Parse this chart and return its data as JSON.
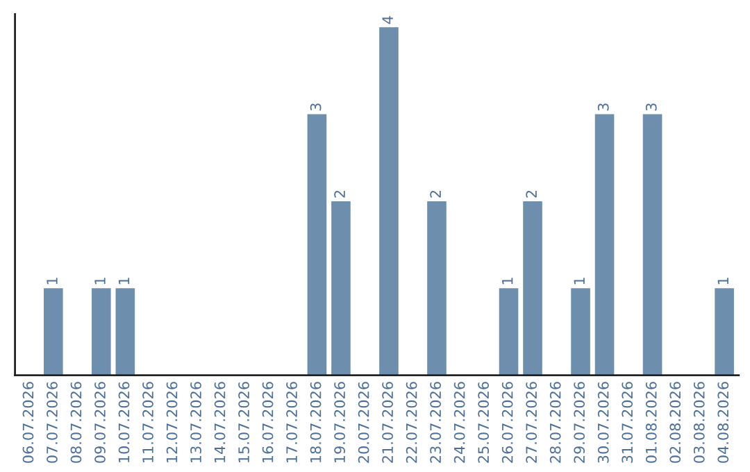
{
  "chart_data": {
    "type": "bar",
    "categories": [
      "06.07.2026",
      "07.07.2026",
      "08.07.2026",
      "09.07.2026",
      "10.07.2026",
      "11.07.2026",
      "12.07.2026",
      "13.07.2026",
      "14.07.2026",
      "15.07.2026",
      "16.07.2026",
      "17.07.2026",
      "18.07.2026",
      "19.07.2026",
      "20.07.2026",
      "21.07.2026",
      "22.07.2026",
      "23.07.2026",
      "24.07.2026",
      "25.07.2026",
      "26.07.2026",
      "27.07.2026",
      "28.07.2026",
      "29.07.2026",
      "30.07.2026",
      "31.07.2026",
      "01.08.2026",
      "02.08.2026",
      "03.08.2026",
      "04.08.2026"
    ],
    "values": [
      0,
      1,
      0,
      1,
      1,
      0,
      0,
      0,
      0,
      0,
      0,
      0,
      3,
      2,
      0,
      4,
      0,
      2,
      0,
      0,
      1,
      2,
      0,
      1,
      3,
      0,
      3,
      0,
      0,
      1
    ],
    "value_labels": [
      null,
      "1",
      null,
      "1",
      "1",
      null,
      null,
      null,
      null,
      null,
      null,
      null,
      "3",
      "2",
      null,
      "4",
      null,
      "2",
      null,
      null,
      "1",
      "2",
      null,
      "1",
      "3",
      null,
      "3",
      null,
      null,
      "1"
    ],
    "color": "#6d8fad",
    "ylim": [
      0,
      4.15
    ],
    "tick_labels": "x",
    "grid": false,
    "legend": false
  }
}
